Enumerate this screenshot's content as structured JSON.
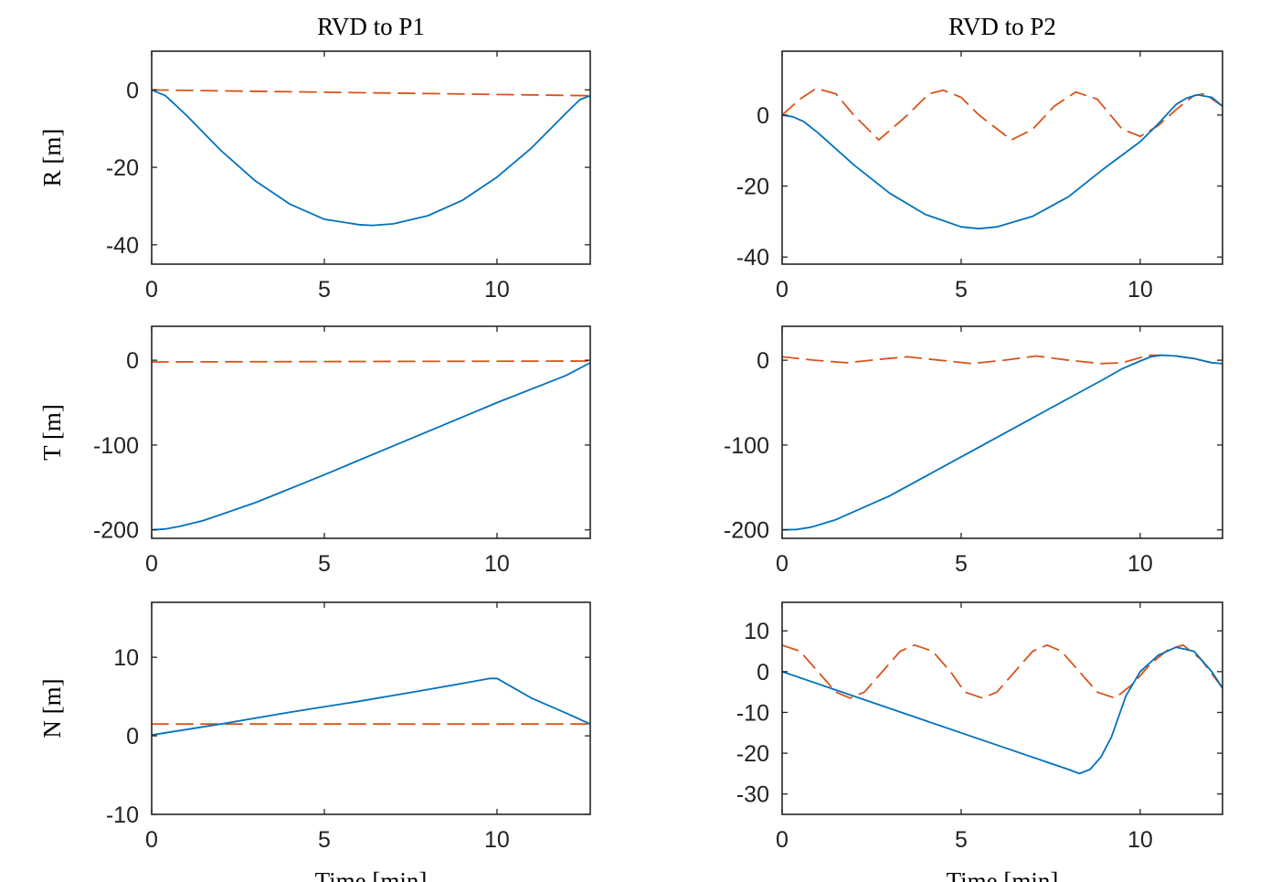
{
  "colors": {
    "actual": "#0072BD",
    "reference": "#D95319",
    "axis": "#262626"
  },
  "chart_data": [
    {
      "type": "line",
      "title": "RVD to P1",
      "xlabel": "",
      "ylabel": "R [m]",
      "xlim": [
        0,
        12.7
      ],
      "ylim": [
        -45,
        10
      ],
      "xticks": [
        0,
        5,
        10
      ],
      "yticks": [
        0,
        -20,
        -40
      ],
      "series": [
        {
          "style": "solid",
          "color": "#0072BD",
          "x": [
            0,
            0.4,
            1,
            2,
            3,
            4,
            5,
            6,
            6.4,
            7,
            8,
            9,
            10,
            11,
            12,
            12.4,
            12.7
          ],
          "y": [
            0,
            -1.5,
            -6.5,
            -15.6,
            -23.5,
            -29.5,
            -33.4,
            -34.8,
            -35,
            -34.6,
            -32.5,
            -28.5,
            -22.5,
            -15,
            -6,
            -2.5,
            -1.5
          ]
        },
        {
          "style": "dashed",
          "color": "#D95319",
          "x": [
            0,
            12.7
          ],
          "y": [
            0,
            -1.5
          ]
        }
      ]
    },
    {
      "type": "line",
      "title": "",
      "xlabel": "",
      "ylabel": "T [m]",
      "xlim": [
        0,
        12.7
      ],
      "ylim": [
        -210,
        40
      ],
      "xticks": [
        0,
        5,
        10
      ],
      "yticks": [
        0,
        -100,
        -200
      ],
      "series": [
        {
          "style": "solid",
          "color": "#0072BD",
          "x": [
            0,
            0.4,
            0.8,
            1.5,
            3,
            5,
            7,
            9,
            10,
            11,
            12,
            12.7
          ],
          "y": [
            -200,
            -199,
            -196,
            -189,
            -168,
            -135,
            -101,
            -67,
            -50,
            -34,
            -18,
            -3
          ]
        },
        {
          "style": "dashed",
          "color": "#D95319",
          "x": [
            0,
            12.7
          ],
          "y": [
            -2,
            -1
          ]
        }
      ]
    },
    {
      "type": "line",
      "title": "",
      "xlabel": "Time [min]",
      "ylabel": "N [m]",
      "xlim": [
        0,
        12.7
      ],
      "ylim": [
        -10,
        17
      ],
      "xticks": [
        0,
        5,
        10
      ],
      "yticks": [
        10,
        0,
        -10
      ],
      "series": [
        {
          "style": "solid",
          "color": "#0072BD",
          "x": [
            0,
            2,
            4,
            6,
            8,
            9.8,
            10,
            11,
            12,
            12.7
          ],
          "y": [
            0.1,
            1.5,
            3,
            4.4,
            5.9,
            7.3,
            7.3,
            4.8,
            2.9,
            1.5
          ]
        },
        {
          "style": "dashed",
          "color": "#D95319",
          "x": [
            0,
            12.7
          ],
          "y": [
            1.5,
            1.5
          ]
        }
      ]
    },
    {
      "type": "line",
      "title": "RVD to P2",
      "xlabel": "",
      "ylabel": "",
      "xlim": [
        0,
        12.3
      ],
      "ylim": [
        -42,
        18
      ],
      "xticks": [
        0,
        5,
        10
      ],
      "yticks": [
        0,
        -20,
        -40
      ],
      "series": [
        {
          "style": "solid",
          "color": "#0072BD",
          "x": [
            0,
            0.3,
            0.6,
            1,
            1.5,
            2,
            3,
            4,
            5,
            5.5,
            6,
            7,
            8,
            9,
            10,
            10.5,
            11,
            11.3,
            11.6,
            12,
            12.3
          ],
          "y": [
            0,
            -0.5,
            -1.8,
            -5,
            -9.5,
            -14,
            -22,
            -28,
            -31.5,
            -32,
            -31.5,
            -28.5,
            -23,
            -15,
            -7.5,
            -2.5,
            3,
            4.8,
            5.7,
            5,
            2.5
          ]
        },
        {
          "style": "dashed",
          "color": "#D95319",
          "x": [
            0,
            0.5,
            0.95,
            1.5,
            2,
            2.7,
            3.5,
            4.1,
            4.5,
            5,
            5.5,
            6.4,
            7,
            7.6,
            8.2,
            8.8,
            9.5,
            10,
            10.5,
            11,
            11.5,
            11.8,
            12.3
          ],
          "y": [
            0,
            4.5,
            7.5,
            6,
            0,
            -7,
            0,
            6,
            7,
            5,
            0,
            -7,
            -4,
            2.5,
            6.5,
            4.5,
            -4,
            -6,
            -3,
            1.5,
            5.5,
            6,
            2.5
          ]
        }
      ]
    },
    {
      "type": "line",
      "title": "",
      "xlabel": "",
      "ylabel": "",
      "xlim": [
        0,
        12.3
      ],
      "ylim": [
        -210,
        40
      ],
      "xticks": [
        0,
        5,
        10
      ],
      "yticks": [
        0,
        -100,
        -200
      ],
      "series": [
        {
          "style": "solid",
          "color": "#0072BD",
          "x": [
            0,
            0.4,
            0.8,
            1.5,
            3,
            5,
            7,
            9,
            9.5,
            10,
            10.3,
            10.6,
            11,
            11.5,
            12,
            12.3
          ],
          "y": [
            -200,
            -199.5,
            -197,
            -188,
            -160,
            -114,
            -68,
            -22,
            -10,
            -1,
            4,
            6,
            5,
            2,
            -3,
            -4
          ]
        },
        {
          "style": "dashed",
          "color": "#D95319",
          "x": [
            0,
            0.9,
            1.8,
            2.7,
            3.5,
            4.4,
            5.3,
            6.2,
            7.1,
            8,
            8.9,
            9.5,
            10,
            10.3,
            10.6,
            11,
            11.5,
            12,
            12.3
          ],
          "y": [
            4,
            0,
            -3,
            1,
            4,
            0,
            -4,
            0,
            5,
            0,
            -4,
            -3,
            3,
            6,
            6,
            5,
            2,
            -3,
            -4
          ]
        }
      ]
    },
    {
      "type": "line",
      "title": "",
      "xlabel": "Time [min]",
      "ylabel": "",
      "xlim": [
        0,
        12.3
      ],
      "ylim": [
        -35,
        17
      ],
      "xticks": [
        0,
        5,
        10
      ],
      "yticks": [
        10,
        0,
        -10,
        -20,
        -30
      ],
      "series": [
        {
          "style": "solid",
          "color": "#0072BD",
          "x": [
            0,
            2,
            4,
            6,
            8,
            8.3,
            8.6,
            8.9,
            9.2,
            9.6,
            10,
            10.5,
            11,
            11.5,
            12,
            12.3
          ],
          "y": [
            0,
            -6,
            -12,
            -18,
            -24,
            -25,
            -24,
            -21,
            -16,
            -6,
            0,
            4,
            6,
            5,
            0,
            -4
          ]
        },
        {
          "style": "dashed",
          "color": "#D95319",
          "x": [
            0,
            0.5,
            1,
            1.5,
            1.9,
            2.3,
            2.8,
            3.3,
            3.7,
            4.2,
            4.7,
            5.1,
            5.6,
            6,
            6.5,
            7,
            7.4,
            7.8,
            8.3,
            8.8,
            9.3,
            9.8,
            10.3,
            10.8,
            11.2,
            11.7,
            12.3
          ],
          "y": [
            6.5,
            5,
            0,
            -5,
            -6.5,
            -5,
            0,
            5,
            6.5,
            5,
            0,
            -5,
            -6.5,
            -5,
            0,
            5,
            6.5,
            5,
            0,
            -5,
            -6.5,
            -3,
            2,
            5.5,
            6.5,
            3,
            -4
          ]
        }
      ]
    }
  ]
}
